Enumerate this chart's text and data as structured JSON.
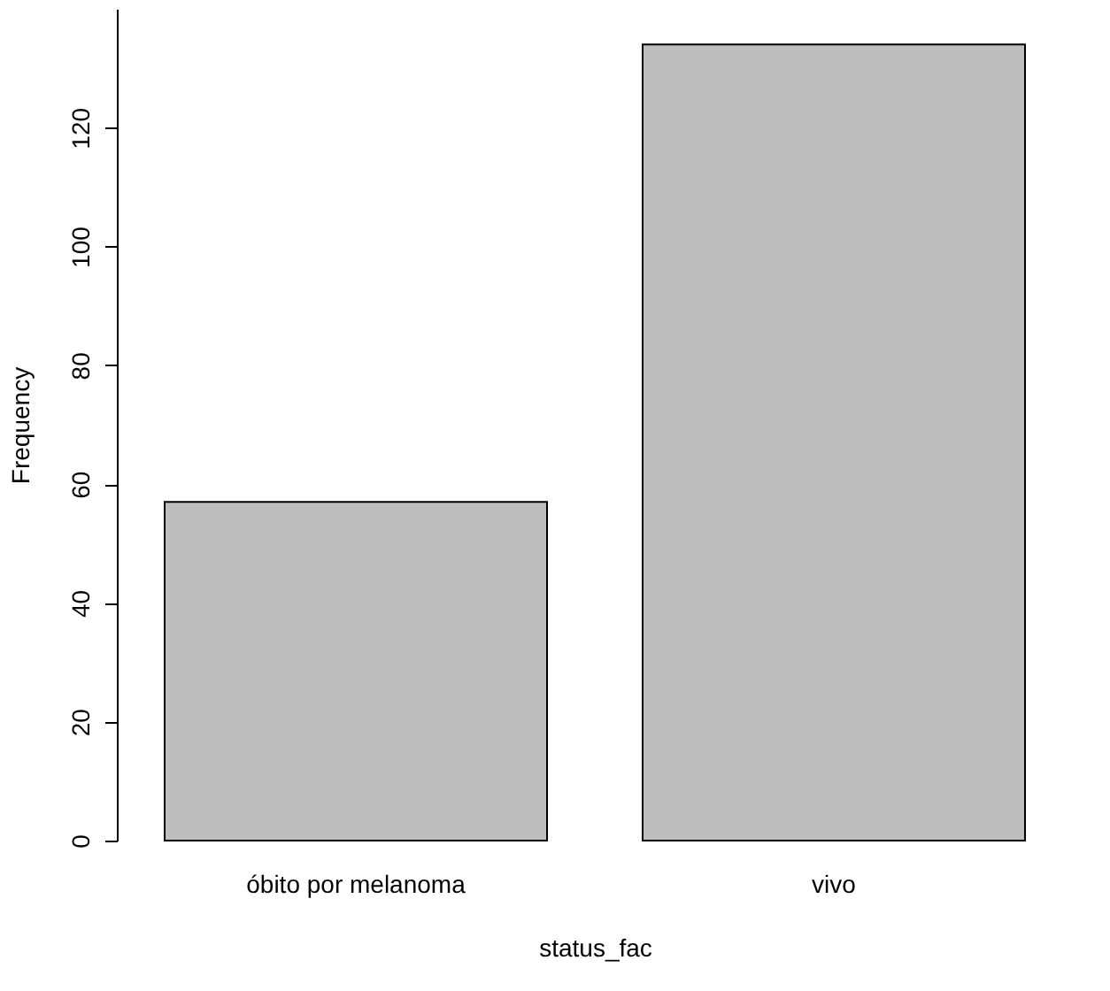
{
  "chart_data": {
    "type": "bar",
    "xlabel": "status_fac",
    "ylabel": "Frequency",
    "categories": [
      "óbito por melanoma",
      "vivo"
    ],
    "values": [
      57,
      134
    ],
    "color": "#bebebe",
    "ylim": [
      0,
      140
    ],
    "yticks": [
      0,
      20,
      40,
      60,
      80,
      100,
      120
    ],
    "grid": false
  }
}
